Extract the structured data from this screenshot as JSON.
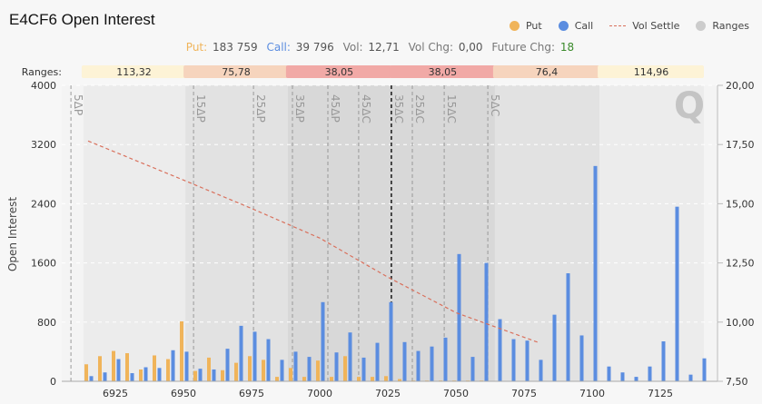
{
  "title": "E4CF6 Open Interest",
  "legend": [
    {
      "label": "Put",
      "color": "#f0b45a",
      "kind": "dot"
    },
    {
      "label": "Call",
      "color": "#5b8de0",
      "kind": "dot"
    },
    {
      "label": "Vol Settle",
      "color": "#d9705c",
      "kind": "dash"
    },
    {
      "label": "Ranges",
      "color": "#cccccc",
      "kind": "dot"
    }
  ],
  "summary": {
    "put_label": "Put:",
    "put_value": "183 759",
    "call_label": "Call:",
    "call_value": "39 796",
    "vol_label": "Vol:",
    "vol_value": "12,71",
    "volchg_label": "Vol Chg:",
    "volchg_value": "0,00",
    "futchg_label": "Future Chg:",
    "futchg_value": "18"
  },
  "colors": {
    "put": "#f0b45a",
    "call": "#5b8de0",
    "vol": "#d9705c",
    "fut_chg": "#3a8a2a"
  },
  "chart_data": {
    "type": "bar",
    "title": "E4CF6 Open Interest",
    "ylabel": "Open Interest",
    "ylim": [
      0,
      4000
    ],
    "yticks": [
      "0",
      "800",
      "1600",
      "2400",
      "3200",
      "4000"
    ],
    "y2lim": [
      7.5,
      20
    ],
    "y2ticks": [
      "7,50",
      "10,00",
      "12,50",
      "15,00",
      "17,50",
      "20,00"
    ],
    "xlim": [
      6910,
      7145
    ],
    "xticks": [
      "6925",
      "6950",
      "6975",
      "7000",
      "7025",
      "7050",
      "7075",
      "7100",
      "7125"
    ],
    "strikes": [
      6915,
      6920,
      6925,
      6930,
      6935,
      6940,
      6945,
      6950,
      6955,
      6960,
      6965,
      6970,
      6975,
      6980,
      6985,
      6990,
      6995,
      7000,
      7005,
      7010,
      7015,
      7020,
      7025,
      7030,
      7035,
      7040,
      7045,
      7050,
      7055,
      7060,
      7065,
      7070,
      7075,
      7080,
      7085,
      7090,
      7095,
      7100,
      7105,
      7110,
      7115,
      7120,
      7125,
      7130,
      7135,
      7140
    ],
    "series": [
      {
        "name": "Put",
        "values": [
          230,
          340,
          410,
          380,
          160,
          350,
          300,
          810,
          140,
          320,
          150,
          250,
          340,
          290,
          60,
          180,
          60,
          280,
          60,
          340,
          60,
          60,
          70,
          30,
          10,
          10,
          10,
          10,
          10,
          10,
          0,
          0,
          0,
          0,
          0,
          0,
          0,
          0,
          0,
          0,
          0,
          0,
          0,
          0,
          0,
          0
        ]
      },
      {
        "name": "Call",
        "values": [
          70,
          120,
          300,
          110,
          190,
          180,
          420,
          400,
          170,
          160,
          440,
          750,
          670,
          570,
          290,
          400,
          330,
          1070,
          390,
          660,
          320,
          520,
          1070,
          530,
          410,
          470,
          590,
          1720,
          330,
          1600,
          840,
          570,
          550,
          290,
          900,
          1460,
          620,
          2910,
          200,
          120,
          60,
          200,
          540,
          2360,
          90,
          310
        ]
      }
    ],
    "vol_settle": {
      "name": "Vol Settle",
      "x": [
        6915,
        6950,
        6975,
        7000,
        7025,
        7050,
        7080
      ],
      "y": [
        17.65,
        16.0,
        14.8,
        13.55,
        11.9,
        10.4,
        9.15
      ]
    },
    "ranges_label": "Ranges:",
    "ranges": [
      {
        "label": "113,32",
        "from": 6913.3,
        "to": 6950.7,
        "color": "#fdf3d6",
        "shade": "#ececec"
      },
      {
        "label": "75,78",
        "from": 6950.7,
        "to": 6988.3,
        "color": "#f6d4bd",
        "shade": "#e2e2e2"
      },
      {
        "label": "38,05",
        "from": 6988.3,
        "to": 7026.3,
        "color": "#f1a9a6",
        "shade": "#d8d8d8"
      },
      {
        "label": "38,05",
        "from": 7026.3,
        "to": 7064.3,
        "color": "#f1a9a6",
        "shade": "#d8d8d8"
      },
      {
        "label": "76,4",
        "from": 7064.3,
        "to": 7102.7,
        "color": "#f6d4bd",
        "shade": "#e2e2e2"
      },
      {
        "label": "114,96",
        "from": 7102.7,
        "to": 7141,
        "color": "#fdf3d6",
        "shade": "#ececec"
      }
    ],
    "deltas": [
      {
        "label": "5ΔP",
        "x": 6908.7
      },
      {
        "label": "15ΔP",
        "x": 6953.7
      },
      {
        "label": "25ΔP",
        "x": 6975.7
      },
      {
        "label": "35ΔP",
        "x": 6990
      },
      {
        "label": "45ΔP",
        "x": 7003
      },
      {
        "label": "45ΔC",
        "x": 7014.3
      },
      {
        "label": "35ΔC",
        "x": 7026.3,
        "current": true
      },
      {
        "label": "25ΔC",
        "x": 7034
      },
      {
        "label": "15ΔC",
        "x": 7045.7
      },
      {
        "label": "5ΔC",
        "x": 7061.7
      }
    ],
    "watermark": "Q"
  }
}
